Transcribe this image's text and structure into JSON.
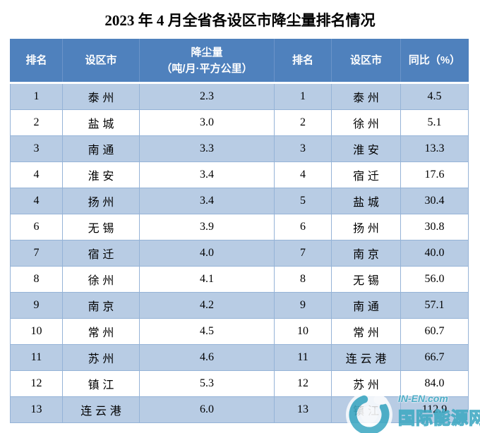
{
  "title": "2023 年 4 月全省各设区市降尘量排名情况",
  "table": {
    "headers": {
      "rank_left": "排名",
      "city_left": "设区市",
      "dust_line1": "降尘量",
      "dust_line2": "（吨/月·平方公里）",
      "rank_right": "排名",
      "city_right": "设区市",
      "yoy": "同比（%）"
    },
    "rows": [
      {
        "rank_l": "1",
        "city_l": "泰州",
        "dust": "2.3",
        "rank_r": "1",
        "city_r": "泰州",
        "yoy": "4.5"
      },
      {
        "rank_l": "2",
        "city_l": "盐城",
        "dust": "3.0",
        "rank_r": "2",
        "city_r": "徐州",
        "yoy": "5.1"
      },
      {
        "rank_l": "3",
        "city_l": "南通",
        "dust": "3.3",
        "rank_r": "3",
        "city_r": "淮安",
        "yoy": "13.3"
      },
      {
        "rank_l": "4",
        "city_l": "淮安",
        "dust": "3.4",
        "rank_r": "4",
        "city_r": "宿迁",
        "yoy": "17.6"
      },
      {
        "rank_l": "4",
        "city_l": "扬州",
        "dust": "3.4",
        "rank_r": "5",
        "city_r": "盐城",
        "yoy": "30.4"
      },
      {
        "rank_l": "6",
        "city_l": "无锡",
        "dust": "3.9",
        "rank_r": "6",
        "city_r": "扬州",
        "yoy": "30.8"
      },
      {
        "rank_l": "7",
        "city_l": "宿迁",
        "dust": "4.0",
        "rank_r": "7",
        "city_r": "南京",
        "yoy": "40.0"
      },
      {
        "rank_l": "8",
        "city_l": "徐州",
        "dust": "4.1",
        "rank_r": "8",
        "city_r": "无锡",
        "yoy": "56.0"
      },
      {
        "rank_l": "9",
        "city_l": "南京",
        "dust": "4.2",
        "rank_r": "9",
        "city_r": "南通",
        "yoy": "57.1"
      },
      {
        "rank_l": "10",
        "city_l": "常州",
        "dust": "4.5",
        "rank_r": "10",
        "city_r": "常州",
        "yoy": "60.7"
      },
      {
        "rank_l": "11",
        "city_l": "苏州",
        "dust": "4.6",
        "rank_r": "11",
        "city_r": "连云港",
        "yoy": "66.7"
      },
      {
        "rank_l": "12",
        "city_l": "镇江",
        "dust": "5.3",
        "rank_r": "12",
        "city_r": "苏州",
        "yoy": "84.0"
      },
      {
        "rank_l": "13",
        "city_l": "连云港",
        "dust": "6.0",
        "rank_r": "13",
        "city_r": "镇江",
        "yoy": "112.9"
      }
    ]
  },
  "watermark": {
    "brand": "IN-EN.com",
    "site_name": "国际能源网"
  },
  "colors": {
    "header_bg": "#4f81bd",
    "band_bg": "#b8cce4",
    "border": "#95b3d7",
    "watermark_teal": "#3fa9c3"
  }
}
